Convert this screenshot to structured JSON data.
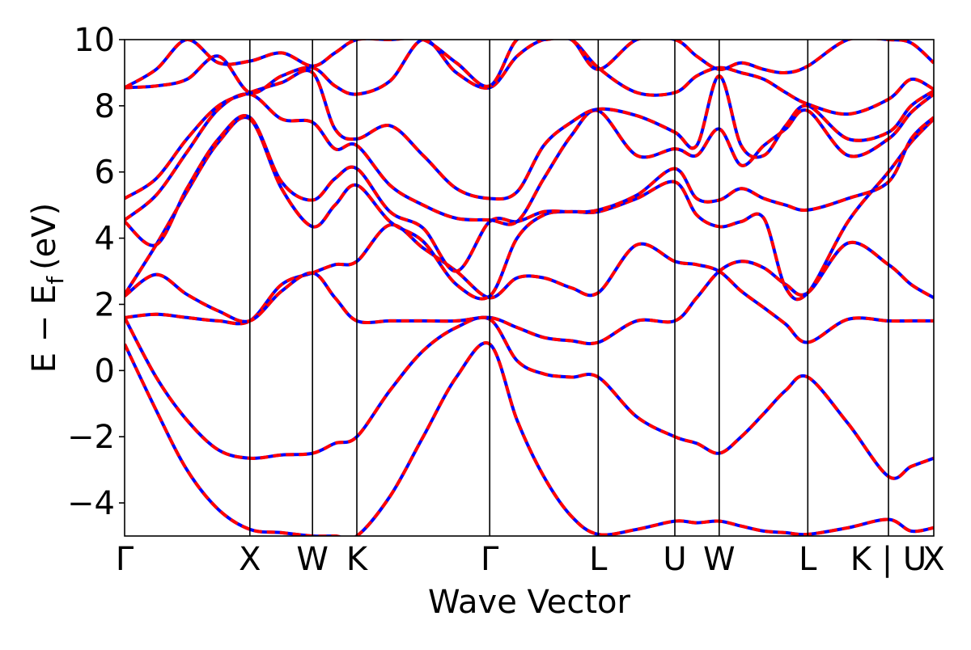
{
  "chart_data": {
    "type": "line",
    "title": "",
    "xlabel": "Wave Vector",
    "ylabel": "E − E",
    "ylabel_subscript": "f",
    "ylabel_unit": "(eV)",
    "ylim": [
      -5,
      10
    ],
    "xlim": [
      0,
      10
    ],
    "yticks": [
      -4,
      -2,
      0,
      2,
      4,
      6,
      8,
      10
    ],
    "ytick_labels": [
      "−4",
      "−2",
      "0",
      "2",
      "4",
      "6",
      "8",
      "10"
    ],
    "kpoints": [
      {
        "label": "Γ",
        "x": 0
      },
      {
        "label": "X",
        "x": 1.548
      },
      {
        "label": "W",
        "x": 2.322
      },
      {
        "label": "K",
        "x": 2.87
      },
      {
        "label": "Γ",
        "x": 4.512
      },
      {
        "label": "L",
        "x": 5.853
      },
      {
        "label": "U",
        "x": 6.8
      },
      {
        "label": "W",
        "x": 7.348
      },
      {
        "label": "L",
        "x": 8.443
      },
      {
        "label": "K | U",
        "x": 9.44
      },
      {
        "label": "X",
        "x": 10
      }
    ],
    "series_style": [
      {
        "color": "#0000ff",
        "dashed": false
      },
      {
        "color": "#ff0000",
        "dashed": true
      }
    ],
    "bands": [
      {
        "x": [
          0,
          0.39,
          0.77,
          1.16,
          1.548,
          1.94,
          2.322,
          2.6,
          2.87,
          3.28,
          3.69,
          4.1,
          4.512,
          4.85,
          5.18,
          5.52,
          5.853,
          6.33,
          6.8,
          7.07,
          7.348,
          7.62,
          7.9,
          8.17,
          8.443,
          8.94,
          9.44,
          9.72,
          10
        ],
        "y": [
          0.8,
          -1.2,
          -3.0,
          -4.2,
          -4.8,
          -4.9,
          -5.0,
          -5.0,
          -5.0,
          -3.8,
          -2.0,
          -0.2,
          0.8,
          -1.5,
          -3.2,
          -4.4,
          -4.95,
          -4.8,
          -4.55,
          -4.6,
          -4.55,
          -4.7,
          -4.85,
          -4.9,
          -4.95,
          -4.75,
          -4.5,
          -4.85,
          -4.75
        ]
      },
      {
        "x": [
          0,
          0.39,
          0.77,
          1.16,
          1.548,
          1.94,
          2.322,
          2.6,
          2.87,
          3.28,
          3.69,
          4.1,
          4.512,
          4.85,
          5.18,
          5.52,
          5.853,
          6.33,
          6.8,
          7.07,
          7.348,
          7.62,
          7.9,
          8.17,
          8.443,
          8.94,
          9.44,
          9.72,
          10
        ],
        "y": [
          1.6,
          -0.2,
          -1.5,
          -2.4,
          -2.65,
          -2.55,
          -2.5,
          -2.2,
          -2.0,
          -0.6,
          0.6,
          1.3,
          1.55,
          0.3,
          -0.1,
          -0.2,
          -0.2,
          -1.4,
          -2.0,
          -2.2,
          -2.5,
          -2.0,
          -1.3,
          -0.6,
          -0.2,
          -1.6,
          -3.2,
          -2.9,
          -2.65
        ]
      },
      {
        "x": [
          0,
          0.39,
          0.77,
          1.16,
          1.548,
          1.94,
          2.322,
          2.6,
          2.87,
          3.28,
          3.69,
          4.1,
          4.512,
          4.85,
          5.18,
          5.52,
          5.853,
          6.33,
          6.8,
          7.07,
          7.348,
          7.62,
          7.9,
          8.17,
          8.443,
          8.94,
          9.44,
          9.72,
          10
        ],
        "y": [
          1.6,
          1.7,
          1.6,
          1.5,
          1.5,
          2.6,
          2.95,
          3.2,
          3.3,
          4.4,
          3.7,
          3.0,
          2.2,
          2.8,
          2.8,
          2.5,
          2.35,
          3.8,
          3.3,
          3.2,
          3.0,
          2.4,
          1.9,
          1.4,
          0.85,
          1.55,
          1.5,
          1.5,
          1.5
        ]
      },
      {
        "x": [
          0,
          0.39,
          0.77,
          1.16,
          1.548,
          1.94,
          2.322,
          2.6,
          2.87,
          3.28,
          3.69,
          4.1,
          4.512,
          4.85,
          5.18,
          5.52,
          5.853,
          6.33,
          6.8,
          7.07,
          7.348,
          7.62,
          7.9,
          8.17,
          8.443,
          8.94,
          9.44,
          9.72,
          10
        ],
        "y": [
          2.25,
          2.9,
          2.3,
          1.8,
          1.5,
          2.4,
          2.95,
          2.2,
          1.5,
          1.5,
          1.5,
          1.5,
          1.6,
          1.3,
          1.0,
          0.9,
          0.85,
          1.5,
          1.5,
          2.2,
          3.0,
          3.3,
          3.1,
          2.6,
          2.35,
          3.85,
          3.2,
          2.6,
          2.2
        ]
      },
      {
        "x": [
          0,
          0.39,
          0.77,
          1.16,
          1.548,
          1.94,
          2.322,
          2.6,
          2.87,
          3.28,
          3.69,
          4.1,
          4.512,
          4.85,
          5.18,
          5.52,
          5.853,
          6.33,
          6.8,
          7.07,
          7.348,
          7.62,
          7.9,
          8.17,
          8.443,
          8.94,
          9.44,
          9.72,
          10
        ],
        "y": [
          2.3,
          3.8,
          5.4,
          6.9,
          7.6,
          5.5,
          4.35,
          5.0,
          5.6,
          4.5,
          3.9,
          2.6,
          2.25,
          4.0,
          4.7,
          4.8,
          4.8,
          5.2,
          5.7,
          4.7,
          4.35,
          4.5,
          4.6,
          2.5,
          2.35,
          4.5,
          6.0,
          6.9,
          7.6
        ]
      },
      {
        "x": [
          0,
          0.39,
          0.77,
          1.16,
          1.548,
          1.94,
          2.322,
          2.6,
          2.87,
          3.28,
          3.69,
          4.1,
          4.512,
          4.85,
          5.18,
          5.52,
          5.853,
          6.33,
          6.8,
          7.07,
          7.348,
          7.62,
          7.9,
          8.17,
          8.443,
          8.94,
          9.44,
          9.72,
          10
        ],
        "y": [
          4.5,
          3.8,
          5.5,
          7.0,
          7.65,
          5.7,
          5.15,
          5.8,
          6.1,
          4.8,
          4.3,
          3.0,
          4.5,
          4.5,
          4.8,
          4.8,
          4.85,
          5.3,
          6.1,
          5.2,
          5.15,
          5.5,
          5.2,
          5.0,
          4.85,
          5.2,
          5.7,
          7.0,
          7.65
        ]
      },
      {
        "x": [
          0,
          0.39,
          0.77,
          1.16,
          1.548,
          1.94,
          2.322,
          2.6,
          2.87,
          3.28,
          3.69,
          4.1,
          4.512,
          4.85,
          5.18,
          5.52,
          5.853,
          6.33,
          6.8,
          7.07,
          7.348,
          7.62,
          7.9,
          8.17,
          8.443,
          8.94,
          9.44,
          9.72,
          10
        ],
        "y": [
          4.55,
          5.3,
          6.6,
          7.9,
          8.35,
          7.6,
          7.5,
          6.7,
          6.8,
          5.6,
          5.0,
          4.6,
          4.55,
          4.5,
          5.8,
          7.1,
          7.85,
          6.5,
          6.7,
          6.5,
          7.3,
          6.2,
          6.8,
          7.3,
          7.85,
          6.5,
          7.0,
          7.8,
          8.35
        ]
      },
      {
        "x": [
          0,
          0.39,
          0.77,
          1.16,
          1.548,
          1.94,
          2.322,
          2.6,
          2.87,
          3.28,
          3.69,
          4.1,
          4.512,
          4.85,
          5.18,
          5.52,
          5.853,
          6.33,
          6.8,
          7.07,
          7.348,
          7.62,
          7.9,
          8.17,
          8.443,
          8.94,
          9.44,
          9.72,
          10
        ],
        "y": [
          5.2,
          5.8,
          7.0,
          8.0,
          8.4,
          8.7,
          9.0,
          7.3,
          7.0,
          7.4,
          6.5,
          5.5,
          5.2,
          5.4,
          6.8,
          7.5,
          7.9,
          7.7,
          7.2,
          6.8,
          8.9,
          6.8,
          6.5,
          7.4,
          8.0,
          7.0,
          7.2,
          8.0,
          8.45
        ]
      },
      {
        "x": [
          0,
          0.39,
          0.77,
          1.16,
          1.548,
          1.94,
          2.322,
          2.6,
          2.87,
          3.28,
          3.69,
          4.1,
          4.512,
          4.85,
          5.18,
          5.52,
          5.853,
          6.33,
          6.8,
          7.07,
          7.348,
          7.62,
          7.9,
          8.17,
          8.443,
          8.94,
          9.44,
          9.72,
          10
        ],
        "y": [
          8.55,
          8.6,
          8.8,
          9.5,
          8.4,
          8.9,
          9.15,
          8.6,
          8.35,
          8.75,
          10.0,
          9.0,
          8.55,
          9.5,
          10.0,
          10.0,
          9.15,
          8.4,
          8.4,
          8.9,
          9.15,
          9.0,
          8.8,
          8.4,
          8.05,
          7.75,
          8.2,
          8.8,
          8.5
        ]
      },
      {
        "x": [
          0,
          0.39,
          0.77,
          1.16,
          1.548,
          1.94,
          2.322,
          2.6,
          2.87,
          3.28,
          3.69,
          4.1,
          4.512,
          4.85,
          5.18,
          5.52,
          5.853,
          6.33,
          6.8,
          7.07,
          7.348,
          7.62,
          7.9,
          8.17,
          8.443,
          8.94,
          9.44,
          9.72,
          10
        ],
        "y": [
          8.55,
          9.1,
          10.0,
          9.3,
          9.35,
          9.6,
          9.2,
          9.6,
          10.0,
          10.0,
          10.0,
          9.3,
          8.6,
          10.0,
          10.0,
          10.0,
          9.1,
          10.0,
          10.0,
          9.5,
          9.1,
          9.3,
          9.1,
          9.0,
          9.2,
          10.0,
          10.0,
          9.9,
          9.3
        ]
      }
    ]
  }
}
